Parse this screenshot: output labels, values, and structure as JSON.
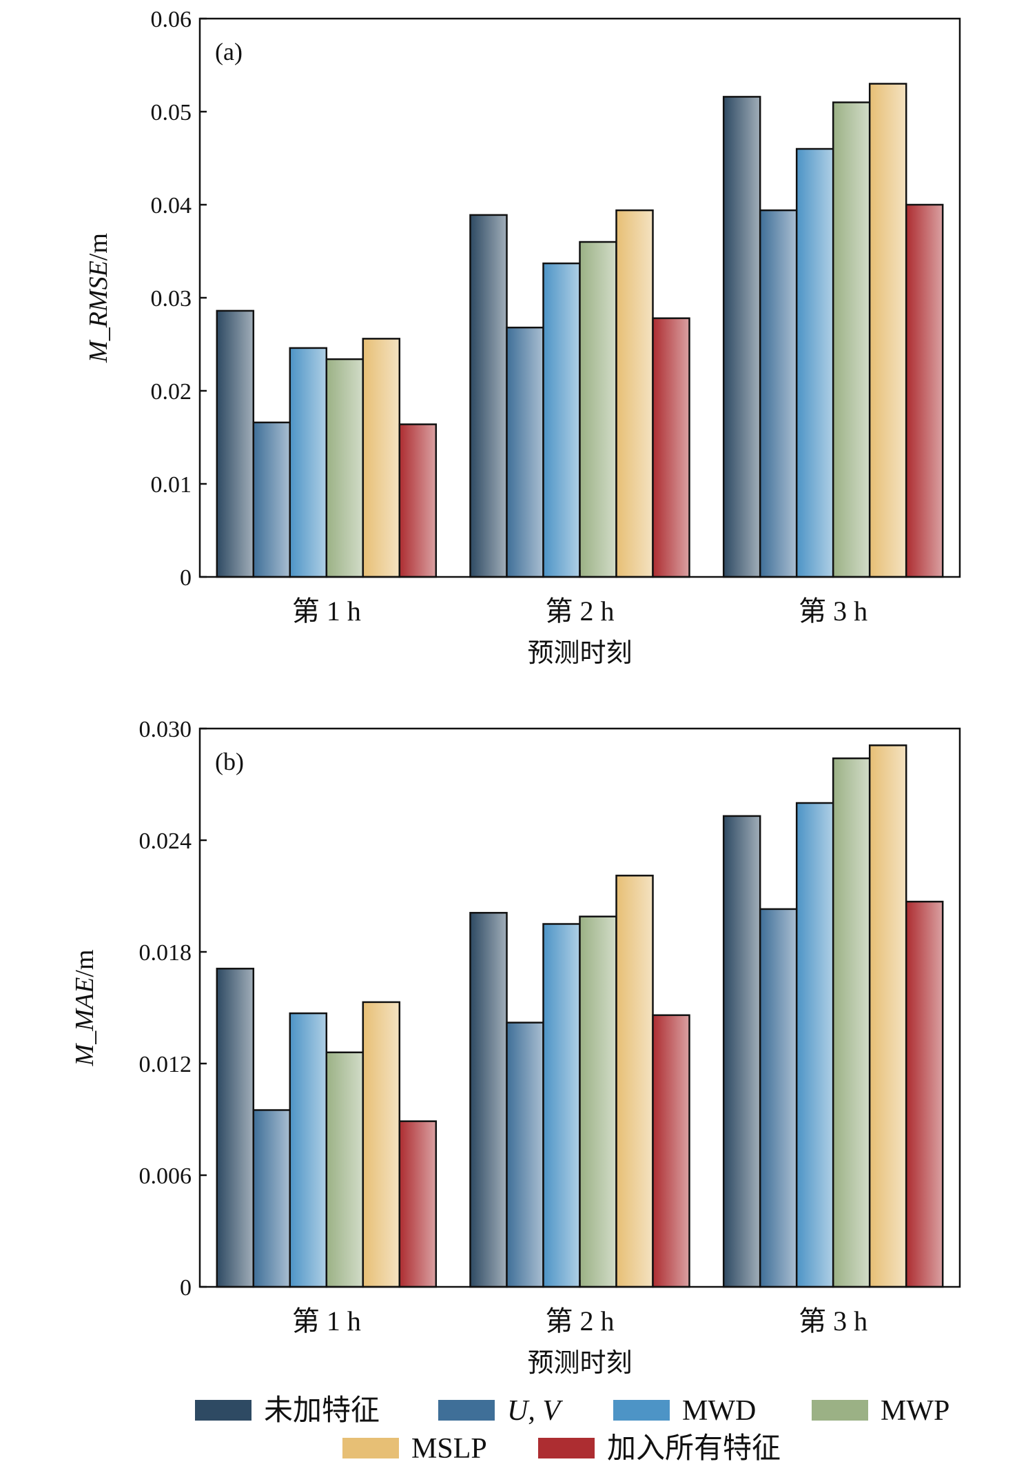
{
  "chart_data": [
    {
      "type": "bar",
      "panel_label": "(a)",
      "categories": [
        "第 1 h",
        "第 2 h",
        "第 3 h"
      ],
      "xlabel": "预测时刻",
      "ylabel": "M_RMSE/m",
      "ylim": [
        0,
        0.06
      ],
      "yticks": [
        "0",
        "0.01",
        "0.02",
        "0.03",
        "0.04",
        "0.05",
        "0.06"
      ],
      "series": [
        {
          "name": "未加特征",
          "values": [
            0.0286,
            0.0389,
            0.0516
          ]
        },
        {
          "name": "U, V",
          "values": [
            0.0166,
            0.0268,
            0.0394
          ]
        },
        {
          "name": "MWD",
          "values": [
            0.0246,
            0.0337,
            0.046
          ]
        },
        {
          "name": "MWP",
          "values": [
            0.0234,
            0.036,
            0.051
          ]
        },
        {
          "name": "MSLP",
          "values": [
            0.0256,
            0.0394,
            0.053
          ]
        },
        {
          "name": "加入所有特征",
          "values": [
            0.0164,
            0.0278,
            0.04
          ]
        }
      ]
    },
    {
      "type": "bar",
      "panel_label": "(b)",
      "categories": [
        "第 1 h",
        "第 2 h",
        "第 3 h"
      ],
      "xlabel": "预测时刻",
      "ylabel": "M_MAE/m",
      "ylim": [
        0,
        0.03
      ],
      "yticks": [
        "0",
        "0.006",
        "0.012",
        "0.018",
        "0.024",
        "0.030"
      ],
      "series": [
        {
          "name": "未加特征",
          "values": [
            0.0171,
            0.0201,
            0.0253
          ]
        },
        {
          "name": "U, V",
          "values": [
            0.0095,
            0.0142,
            0.0203
          ]
        },
        {
          "name": "MWD",
          "values": [
            0.0147,
            0.0195,
            0.026
          ]
        },
        {
          "name": "MWP",
          "values": [
            0.0126,
            0.0199,
            0.0284
          ]
        },
        {
          "name": "MSLP",
          "values": [
            0.0153,
            0.0221,
            0.0291
          ]
        },
        {
          "name": "加入所有特征",
          "values": [
            0.0089,
            0.0146,
            0.0207
          ]
        }
      ]
    }
  ],
  "legend": {
    "items": [
      {
        "label": "未加特征",
        "color": "#2e4a63",
        "italic": false
      },
      {
        "label": "U, V",
        "color": "#3f6f98",
        "italic": true
      },
      {
        "label": "MWD",
        "color": "#4d94c6",
        "italic": false
      },
      {
        "label": "MWP",
        "color": "#9bb185",
        "italic": false
      },
      {
        "label": "MSLP",
        "color": "#e7bf75",
        "italic": false
      },
      {
        "label": "加入所有特征",
        "color": "#ad2d31",
        "italic": false
      }
    ]
  }
}
